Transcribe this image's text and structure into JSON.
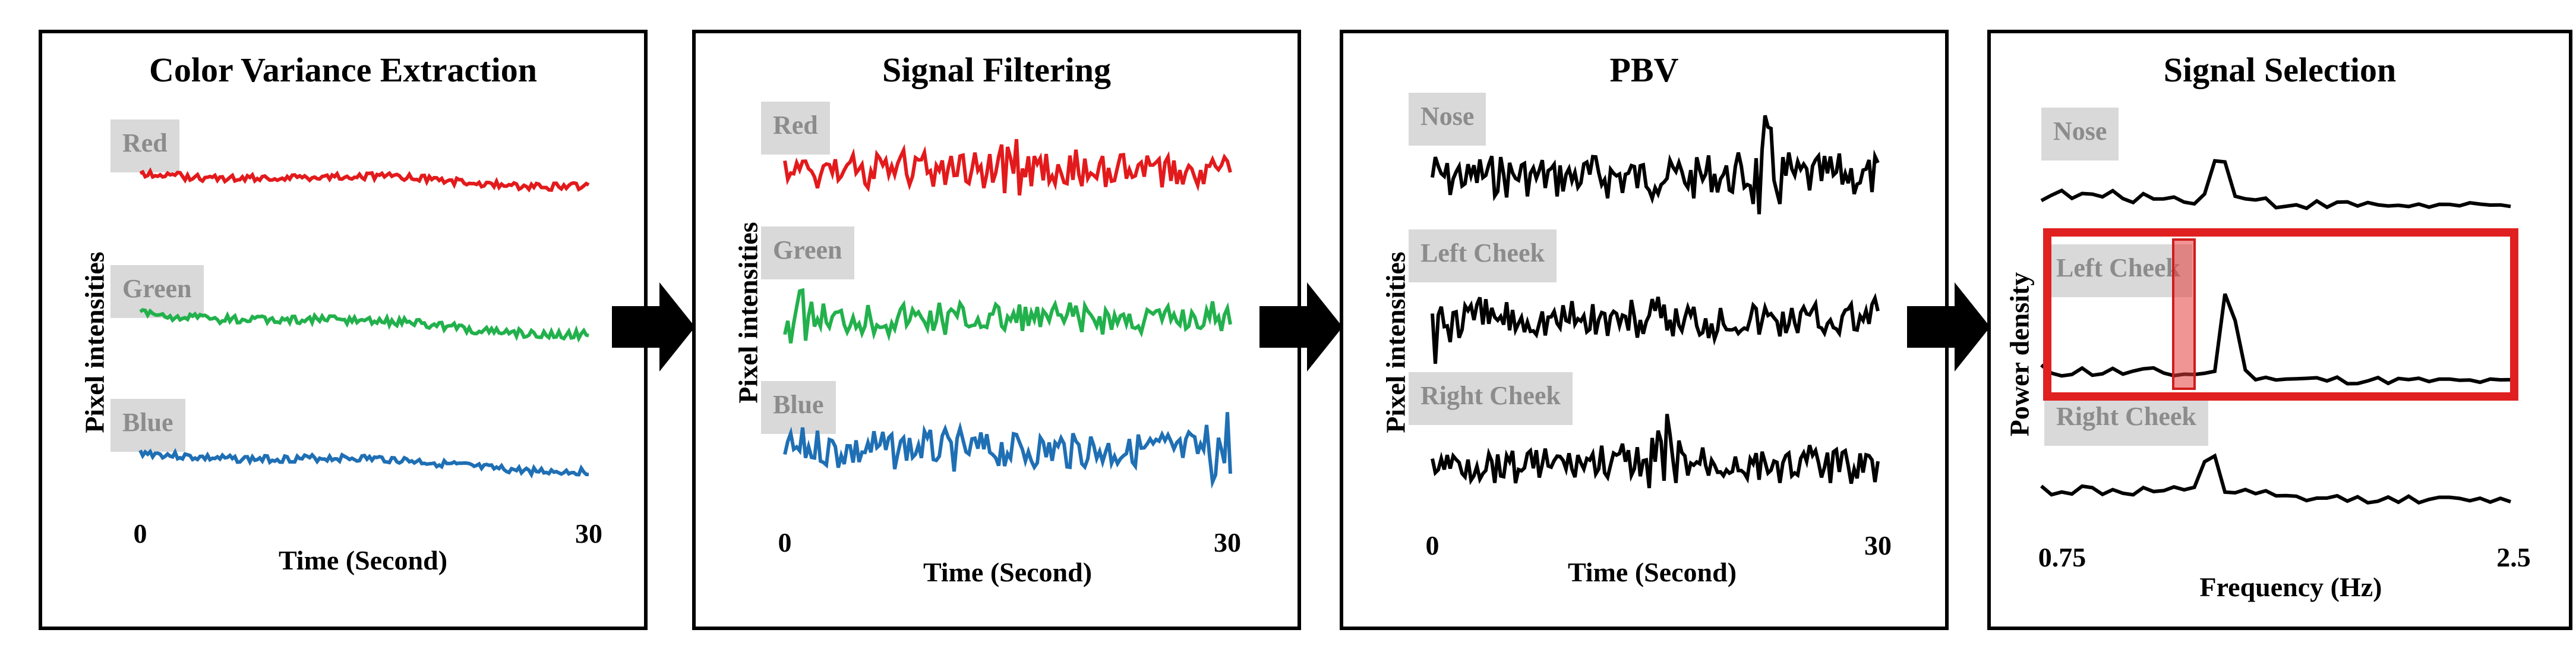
{
  "panels": [
    {
      "title": "Color Variance Extraction",
      "ylabel": "Pixel intensities",
      "xlabel": "Time (Second)",
      "xtick_start": "0",
      "xtick_end": "30",
      "signals": [
        {
          "label": "Red",
          "color": "#e31a1c"
        },
        {
          "label": "Green",
          "color": "#22b14c"
        },
        {
          "label": "Blue",
          "color": "#1f6fb4"
        }
      ]
    },
    {
      "title": "Signal Filtering",
      "ylabel": "Pixel intensities",
      "xlabel": "Time (Second)",
      "xtick_start": "0",
      "xtick_end": "30",
      "signals": [
        {
          "label": "Red",
          "color": "#e31a1c"
        },
        {
          "label": "Green",
          "color": "#22b14c"
        },
        {
          "label": "Blue",
          "color": "#1f6fb4"
        }
      ]
    },
    {
      "title": "PBV",
      "ylabel": "Pixel intensities",
      "xlabel": "Time (Second)",
      "xtick_start": "0",
      "xtick_end": "30",
      "signals": [
        {
          "label": "Nose",
          "color": "#000000"
        },
        {
          "label": "Left Cheek",
          "color": "#000000"
        },
        {
          "label": "Right Cheek",
          "color": "#000000"
        }
      ]
    },
    {
      "title": "Signal Selection",
      "ylabel": "Power density",
      "xlabel": "Frequency  (Hz)",
      "xtick_start": "0.75",
      "xtick_end": "2.5",
      "selection_color": "#e02020",
      "signals": [
        {
          "label": "Nose",
          "color": "#000000"
        },
        {
          "label": "Left Cheek",
          "color": "#000000"
        },
        {
          "label": "Right Cheek",
          "color": "#000000"
        }
      ]
    }
  ],
  "arrow_color": "#000000"
}
